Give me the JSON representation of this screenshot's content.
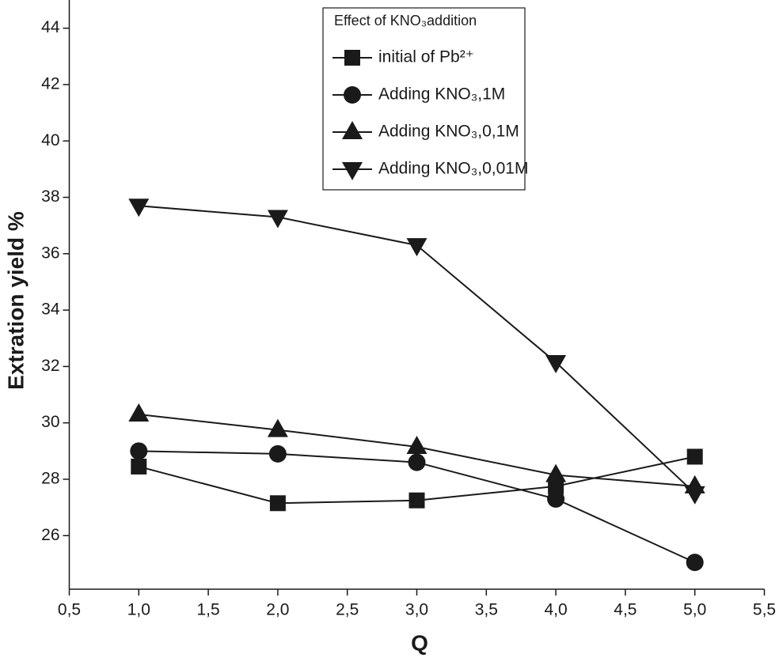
{
  "chart_data": {
    "type": "line",
    "x_label": "Q",
    "y_label": "Extration yield %",
    "legend_title": "Effect of KNO₃addition",
    "legend_position": "top-center",
    "x": [
      1.0,
      2.0,
      3.0,
      4.0,
      5.0
    ],
    "series": [
      {
        "name": "initial of Pb²⁺",
        "color": "#1a1a1a",
        "marker": "square",
        "values": [
          28.45,
          27.15,
          27.25,
          27.75,
          28.8
        ]
      },
      {
        "name": "Adding KNO₃,1M",
        "color": "#1a1a1a",
        "marker": "circle",
        "values": [
          29.0,
          28.9,
          28.6,
          27.3,
          25.05
        ]
      },
      {
        "name": "Adding KNO₃,0,1M",
        "color": "#1a1a1a",
        "marker": "triangle-up",
        "values": [
          30.3,
          29.75,
          29.15,
          28.15,
          27.75
        ]
      },
      {
        "name": "Adding KNO₃,0,01M",
        "color": "#1a1a1a",
        "marker": "triangle-down",
        "values": [
          37.7,
          37.3,
          36.3,
          32.15,
          27.5
        ]
      }
    ],
    "xlim": [
      0.5,
      5.5
    ],
    "ylim": [
      24.1,
      45.0
    ],
    "xticks": [
      {
        "value": 0.5,
        "label": "0,5"
      },
      {
        "value": 1.0,
        "label": "1,0"
      },
      {
        "value": 1.5,
        "label": "1,5"
      },
      {
        "value": 2.0,
        "label": "2,0"
      },
      {
        "value": 2.5,
        "label": "2,5"
      },
      {
        "value": 3.0,
        "label": "3,0"
      },
      {
        "value": 3.5,
        "label": "3,5"
      },
      {
        "value": 4.0,
        "label": "4,0"
      },
      {
        "value": 4.5,
        "label": "4,5"
      },
      {
        "value": 5.0,
        "label": "5,0"
      },
      {
        "value": 5.5,
        "label": "5,5"
      }
    ],
    "yticks": [
      26,
      28,
      30,
      32,
      34,
      36,
      38,
      40,
      42,
      44
    ]
  }
}
